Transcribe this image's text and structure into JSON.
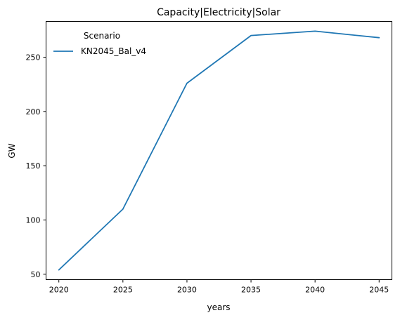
{
  "chart_data": {
    "type": "line",
    "title": "Capacity|Electricity|Solar",
    "xlabel": "years",
    "ylabel": "GW",
    "x": [
      2020,
      2025,
      2030,
      2035,
      2040,
      2045
    ],
    "x_ticks": [
      2020,
      2025,
      2030,
      2035,
      2040,
      2045
    ],
    "y_ticks": [
      50,
      100,
      150,
      200,
      250
    ],
    "xlim": [
      2019,
      2046
    ],
    "ylim": [
      45,
      283
    ],
    "grid": false,
    "legend": {
      "title": "Scenario",
      "position": "top-left"
    },
    "series": [
      {
        "name": "KN2045_Bal_v4",
        "color": "#1f77b4",
        "values": [
          54,
          110,
          226,
          270,
          274,
          268
        ]
      }
    ]
  }
}
